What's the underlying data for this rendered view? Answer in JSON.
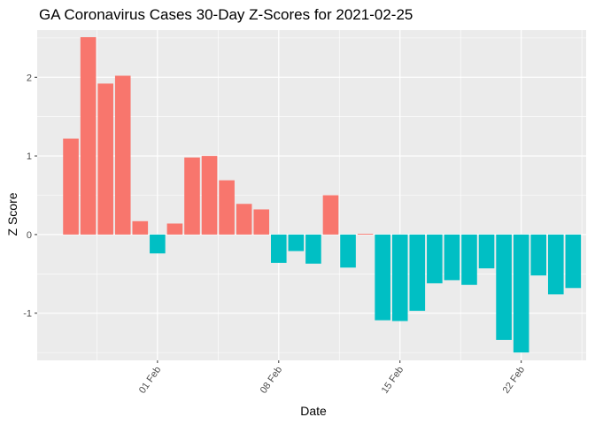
{
  "chart_data": {
    "type": "bar",
    "title": "GA Coronavirus Cases 30-Day Z-Scores for 2021-02-25",
    "xlabel": "Date",
    "ylabel": "Z Score",
    "ylim": [
      -1.6,
      2.6
    ],
    "y_ticks": [
      -1,
      0,
      1,
      2
    ],
    "y_tick_labels": [
      "-1",
      "0",
      "1",
      "2"
    ],
    "x_tick_labels": [
      "01 Feb",
      "08 Feb",
      "15 Feb",
      "22 Feb"
    ],
    "x_tick_dates": [
      "2021-02-01",
      "2021-02-08",
      "2021-02-15",
      "2021-02-22"
    ],
    "grid": true,
    "colors": {
      "positive": "#f8766d",
      "negative": "#00bfc4",
      "panel": "#ebebeb",
      "grid": "#ffffff"
    },
    "dates": [
      "2021-01-27",
      "2021-01-28",
      "2021-01-29",
      "2021-01-30",
      "2021-01-31",
      "2021-02-01",
      "2021-02-02",
      "2021-02-03",
      "2021-02-04",
      "2021-02-05",
      "2021-02-06",
      "2021-02-07",
      "2021-02-08",
      "2021-02-09",
      "2021-02-10",
      "2021-02-11",
      "2021-02-12",
      "2021-02-13",
      "2021-02-14",
      "2021-02-15",
      "2021-02-16",
      "2021-02-17",
      "2021-02-18",
      "2021-02-19",
      "2021-02-20",
      "2021-02-21",
      "2021-02-22",
      "2021-02-23",
      "2021-02-24",
      "2021-02-25"
    ],
    "values": [
      1.22,
      2.51,
      1.92,
      2.02,
      0.17,
      -0.24,
      0.14,
      0.98,
      1.0,
      0.69,
      0.39,
      0.32,
      -0.36,
      -0.21,
      -0.37,
      0.5,
      -0.42,
      0.01,
      -1.09,
      -1.1,
      -0.97,
      -0.62,
      -0.58,
      -0.64,
      -0.43,
      -1.34,
      -1.5,
      -0.52,
      -0.76,
      -0.68
    ]
  }
}
